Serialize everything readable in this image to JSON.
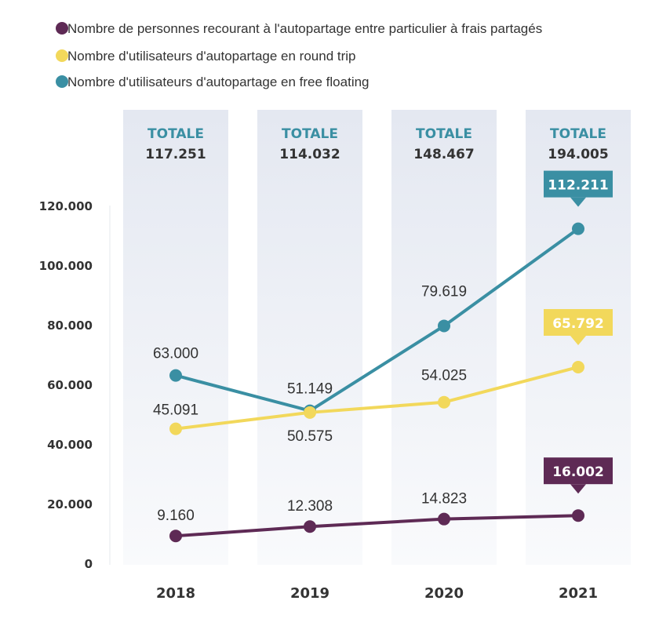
{
  "chart_data": {
    "type": "line",
    "categories": [
      "2018",
      "2019",
      "2020",
      "2021"
    ],
    "ylim": [
      0,
      120000
    ],
    "yticks": [
      {
        "value": 0,
        "label": "0"
      },
      {
        "value": 20000,
        "label": "20.000"
      },
      {
        "value": 40000,
        "label": "40.000"
      },
      {
        "value": 60000,
        "label": "60.000"
      },
      {
        "value": 80000,
        "label": "80.000"
      },
      {
        "value": 100000,
        "label": "100.000"
      },
      {
        "value": 120000,
        "label": "120.000"
      }
    ],
    "grid": false,
    "legend_position": "top-left",
    "totals_label": "TOTALE",
    "totals": [
      "117.251",
      "114.032",
      "148.467",
      "194.005"
    ],
    "series": [
      {
        "name": "Nombre de personnes recourant à l'autopartage entre particulier à frais partagés",
        "color": "#5e2a55",
        "values": [
          9160,
          12308,
          14823,
          16002
        ],
        "labels": [
          "9.160",
          "12.308",
          "14.823",
          "16.002"
        ],
        "callout_last": true
      },
      {
        "name": "Nombre d'utilisateurs d'autopartage en round trip",
        "color": "#f2d85b",
        "values": [
          45091,
          50575,
          54025,
          65792
        ],
        "labels": [
          "45.091",
          "50.575",
          "54.025",
          "65.792"
        ],
        "callout_last": true
      },
      {
        "name": "Nombre d'utilisateurs d'autopartage en free floating",
        "color": "#3a8fa3",
        "values": [
          63000,
          51149,
          79619,
          112211
        ],
        "labels": [
          "63.000",
          "51.149",
          "79.619",
          "112.211"
        ],
        "callout_last": true
      }
    ]
  }
}
